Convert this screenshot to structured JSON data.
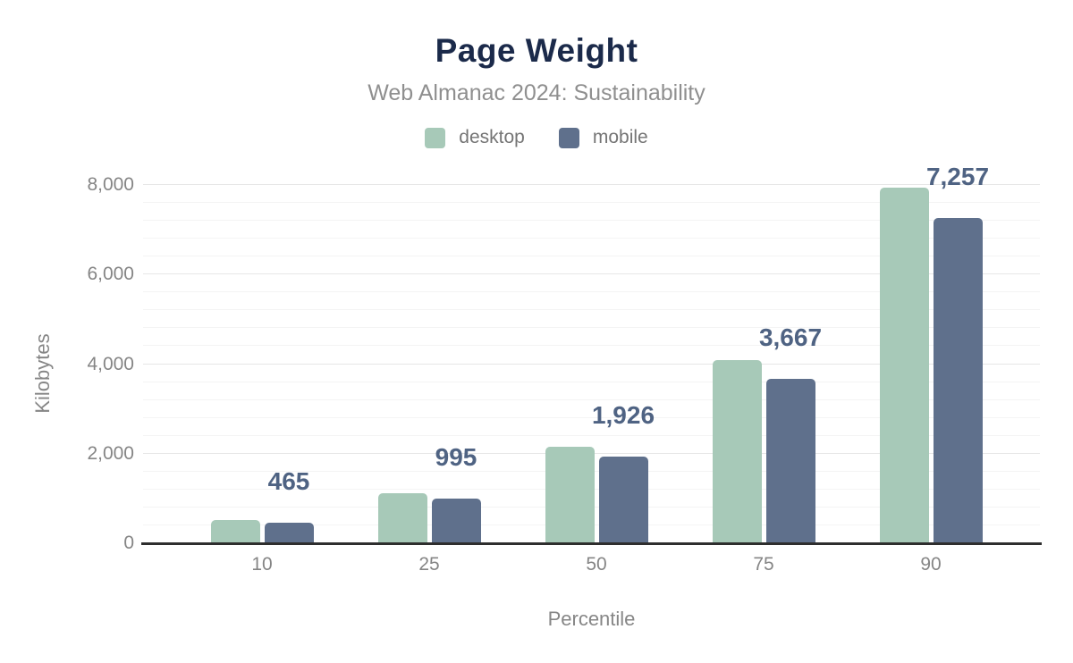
{
  "header": {
    "title": "Page Weight",
    "subtitle": "Web Almanac 2024: Sustainability"
  },
  "legend": [
    {
      "label": "desktop",
      "color": "#a7c9b8"
    },
    {
      "label": "mobile",
      "color": "#5f708c"
    }
  ],
  "chart_data": {
    "type": "bar",
    "title": "Page Weight",
    "subtitle": "Web Almanac 2024: Sustainability",
    "categories": [
      "10",
      "25",
      "50",
      "75",
      "90"
    ],
    "series": [
      {
        "name": "desktop",
        "color": "#a7c9b8",
        "values": [
          520,
          1120,
          2150,
          4090,
          7950
        ]
      },
      {
        "name": "mobile",
        "color": "#5f708c",
        "values": [
          465,
          995,
          1926,
          3667,
          7257
        ]
      }
    ],
    "data_labels": {
      "series": "mobile",
      "values": [
        "465",
        "995",
        "1,926",
        "3,667",
        "7,257"
      ]
    },
    "xlabel": "Percentile",
    "ylabel": "Kilobytes",
    "ylim": [
      0,
      8000
    ],
    "y_major_ticks": [
      0,
      2000,
      4000,
      6000,
      8000
    ],
    "y_tick_labels": [
      "0",
      "2,000",
      "4,000",
      "6,000",
      "8,000"
    ],
    "y_minor_step": 400,
    "grid": true,
    "legend_position": "top"
  },
  "colors": {
    "background": "#ffffff",
    "title_text": "#1b2a4a",
    "subtitle_text": "#8f8f8f",
    "axis_text": "#858585",
    "data_label_text": "#4f6383",
    "axis_line": "#2e2e2e",
    "grid_major": "#e7e7e7",
    "grid_minor": "#f4f4f4"
  }
}
